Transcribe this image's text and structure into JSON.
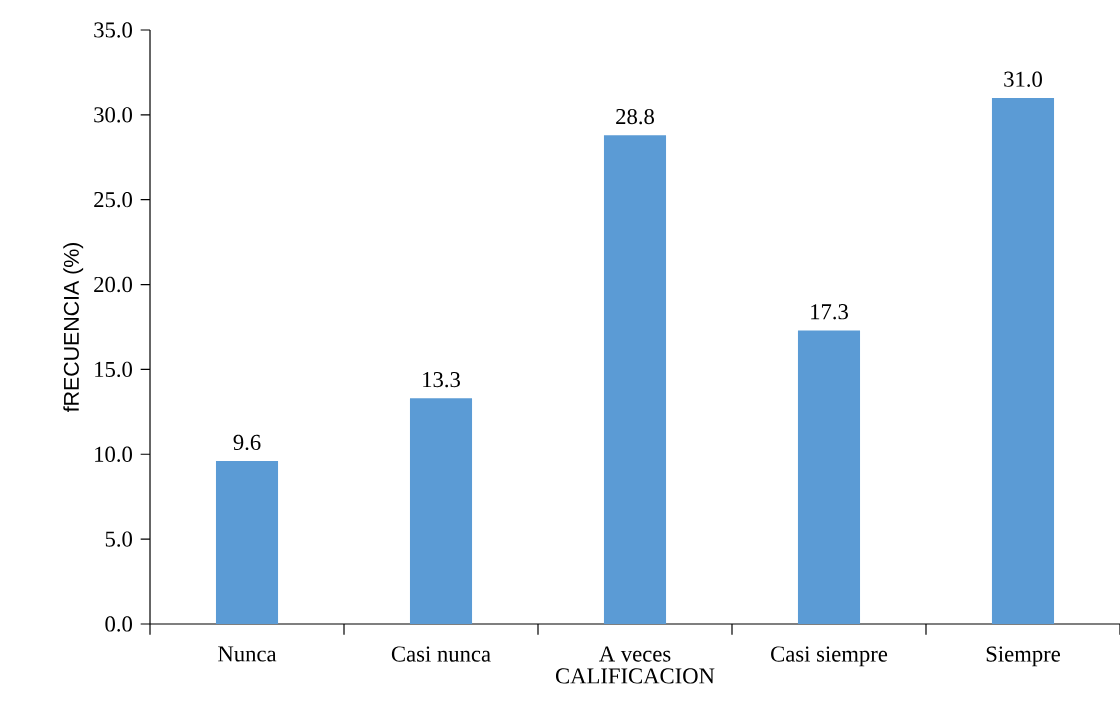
{
  "chart_data": {
    "type": "bar",
    "xlabel": "CALIFICACION",
    "ylabel": "fRECUENCIA (%)",
    "categories": [
      "Nunca",
      "Casi nunca",
      "A veces",
      "Casi siempre",
      "Siempre"
    ],
    "values": [
      9.6,
      13.3,
      28.8,
      17.3,
      31.0
    ],
    "value_labels": [
      "9.6",
      "13.3",
      "28.8",
      "17.3",
      "31.0"
    ],
    "color": "#5b9bd5",
    "ylim": [
      0,
      35
    ],
    "yticks": [
      {
        "value": 0,
        "label": "0.0"
      },
      {
        "value": 5,
        "label": "5.0"
      },
      {
        "value": 10,
        "label": "10.0"
      },
      {
        "value": 15,
        "label": "15.0"
      },
      {
        "value": 20,
        "label": "20.0"
      },
      {
        "value": 25,
        "label": "25.0"
      },
      {
        "value": 30,
        "label": "30.0"
      },
      {
        "value": 35,
        "label": "35.0"
      }
    ],
    "grid": false
  }
}
